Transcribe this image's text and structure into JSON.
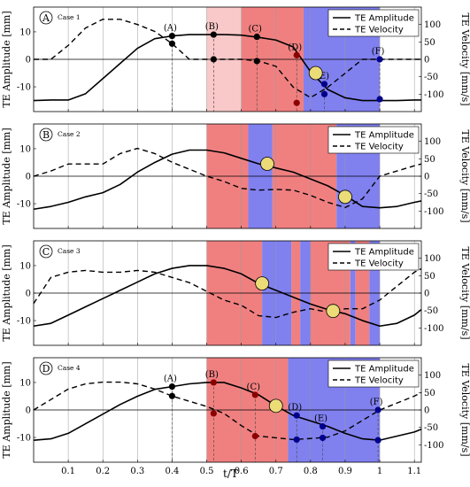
{
  "chart_data": {
    "type": "line",
    "xlabel": "t/T",
    "ylabel_left": "TE Amplitude [mm]",
    "ylabel_right": "TE Velocity [mm/s]",
    "xlim": [
      0,
      1.12
    ],
    "xticks": [
      "0.1",
      "0.2",
      "0.3",
      "0.4",
      "0.5",
      "0.6",
      "0.7",
      "0.8",
      "0.9",
      "1",
      "1.1"
    ],
    "xtick_values": [
      0.1,
      0.2,
      0.3,
      0.4,
      0.5,
      0.6,
      0.7,
      0.8,
      0.9,
      1.0,
      1.1
    ],
    "ylim_left": [
      -19,
      19
    ],
    "yticks_left": [
      "10",
      "0",
      "-10"
    ],
    "ylim_right": [
      -150,
      150
    ],
    "yticks_right": [
      "100",
      "50",
      "0",
      "-50",
      "-100"
    ],
    "grid": "vertical",
    "legend_location": "top-right",
    "legend": [
      "TE Amplitude",
      "TE Velocity"
    ],
    "colors": {
      "red": "#f08080",
      "light_red": "#f9c8c8",
      "blue": "#8080ef",
      "marker_red": "#8b0000",
      "marker_blue": "#00008b",
      "circle_fill": "#ecdc78"
    },
    "panels": [
      {
        "letter": "A",
        "case": "Case 1",
        "amplitude": {
          "x": [
            0,
            0.05,
            0.1,
            0.15,
            0.2,
            0.25,
            0.3,
            0.35,
            0.4,
            0.45,
            0.5,
            0.55,
            0.6,
            0.65,
            0.7,
            0.75,
            0.8,
            0.85,
            0.9,
            0.95,
            1.0,
            1.05,
            1.1,
            1.12
          ],
          "y": [
            -15,
            -14.8,
            -14.8,
            -12.5,
            -7,
            -1.5,
            4,
            7.5,
            8.5,
            9,
            9,
            9,
            8.8,
            8,
            7,
            4.5,
            -4.5,
            -11,
            -14,
            -15,
            -15,
            -15,
            -14.8,
            -14.8
          ]
        },
        "velocity": {
          "x": [
            0,
            0.05,
            0.1,
            0.15,
            0.2,
            0.25,
            0.3,
            0.35,
            0.4,
            0.45,
            0.5,
            0.55,
            0.6,
            0.65,
            0.7,
            0.75,
            0.8,
            0.85,
            0.9,
            0.95,
            1.0,
            1.05,
            1.1,
            1.12
          ],
          "y": [
            0,
            0,
            40,
            90,
            115,
            115,
            100,
            80,
            45,
            0,
            0,
            0,
            0,
            -5,
            -20,
            -80,
            -110,
            -80,
            -40,
            0,
            0,
            0,
            0,
            0
          ]
        },
        "regions": [
          {
            "x0": 0.5,
            "x1": 0.6,
            "color": "light_red"
          },
          {
            "x0": 0.6,
            "x1": 0.78,
            "color": "red"
          },
          {
            "x0": 0.78,
            "x1": 1.0,
            "color": "blue"
          }
        ],
        "markers": [
          {
            "label": "(A)",
            "x": 0.4,
            "amp": 8.5,
            "vel": 45,
            "color": "#000000"
          },
          {
            "label": "(B)",
            "x": 0.52,
            "amp": 9,
            "vel": 0,
            "color": "#000000"
          },
          {
            "label": "(C)",
            "x": 0.645,
            "amp": 8.2,
            "vel": -5,
            "color": "#000000"
          },
          {
            "label": "(D)",
            "x": 0.76,
            "amp": 1.5,
            "vel": -125,
            "color": "marker_red"
          },
          {
            "label": "(E)",
            "x": 0.84,
            "amp": -9,
            "vel": -100,
            "color": "marker_blue"
          },
          {
            "label": "(F)",
            "x": 1.0,
            "amp": -14.5,
            "vel": 0,
            "color": "marker_blue"
          }
        ],
        "circles": [
          {
            "x": 0.815,
            "amp": -5
          }
        ]
      },
      {
        "letter": "B",
        "case": "Case 2",
        "amplitude": {
          "x": [
            0,
            0.05,
            0.1,
            0.15,
            0.2,
            0.25,
            0.3,
            0.35,
            0.4,
            0.45,
            0.5,
            0.55,
            0.6,
            0.65,
            0.7,
            0.75,
            0.8,
            0.85,
            0.9,
            0.95,
            1.0,
            1.05,
            1.1,
            1.12
          ],
          "y": [
            -12,
            -11,
            -9.5,
            -7.5,
            -6,
            -3,
            1.5,
            5,
            8,
            9.5,
            9.5,
            8.5,
            6.5,
            4.5,
            3,
            1.5,
            -1,
            -3.5,
            -7,
            -11,
            -11.5,
            -11,
            -9.5,
            -9
          ]
        },
        "velocity": {
          "x": [
            0,
            0.05,
            0.1,
            0.15,
            0.2,
            0.25,
            0.3,
            0.35,
            0.4,
            0.45,
            0.5,
            0.55,
            0.6,
            0.65,
            0.7,
            0.75,
            0.8,
            0.85,
            0.9,
            0.95,
            1.0,
            1.05,
            1.1,
            1.12
          ],
          "y": [
            0,
            15,
            35,
            35,
            35,
            65,
            80,
            65,
            40,
            20,
            0,
            -15,
            -35,
            -40,
            -38,
            -40,
            -55,
            -75,
            -90,
            -65,
            0,
            15,
            30,
            35
          ]
        },
        "regions": [
          {
            "x0": 0.5,
            "x1": 0.62,
            "color": "red"
          },
          {
            "x0": 0.62,
            "x1": 0.69,
            "color": "blue"
          },
          {
            "x0": 0.69,
            "x1": 0.875,
            "color": "red"
          },
          {
            "x0": 0.875,
            "x1": 1.0,
            "color": "blue"
          }
        ],
        "markers": [],
        "circles": [
          {
            "x": 0.675,
            "amp": 4.5
          },
          {
            "x": 0.9,
            "amp": -7.5
          }
        ]
      },
      {
        "letter": "C",
        "case": "Case 3",
        "amplitude": {
          "x": [
            0,
            0.05,
            0.1,
            0.15,
            0.2,
            0.25,
            0.3,
            0.35,
            0.4,
            0.45,
            0.5,
            0.55,
            0.6,
            0.65,
            0.7,
            0.75,
            0.8,
            0.85,
            0.9,
            0.95,
            1.0,
            1.05,
            1.1,
            1.12
          ],
          "y": [
            -12,
            -11,
            -8,
            -5,
            -2,
            1,
            4,
            7,
            9,
            10,
            10,
            9,
            7,
            3.5,
            1,
            -1.5,
            -4,
            -6,
            -7.5,
            -10,
            -12,
            -11,
            -8,
            -6
          ]
        },
        "velocity": {
          "x": [
            0,
            0.05,
            0.1,
            0.15,
            0.2,
            0.25,
            0.3,
            0.35,
            0.4,
            0.45,
            0.5,
            0.55,
            0.6,
            0.65,
            0.7,
            0.75,
            0.8,
            0.85,
            0.9,
            0.95,
            1.0,
            1.05,
            1.1,
            1.12
          ],
          "y": [
            -30,
            45,
            60,
            65,
            60,
            60,
            65,
            60,
            45,
            30,
            5,
            -20,
            -35,
            -65,
            -70,
            -55,
            -45,
            -55,
            -45,
            -45,
            -20,
            20,
            60,
            70
          ]
        },
        "regions": [
          {
            "x0": 0.5,
            "x1": 0.66,
            "color": "red"
          },
          {
            "x0": 0.66,
            "x1": 0.745,
            "color": "blue"
          },
          {
            "x0": 0.745,
            "x1": 0.77,
            "color": "red"
          },
          {
            "x0": 0.77,
            "x1": 0.8,
            "color": "blue"
          },
          {
            "x0": 0.8,
            "x1": 0.915,
            "color": "red"
          },
          {
            "x0": 0.915,
            "x1": 0.93,
            "color": "blue"
          },
          {
            "x0": 0.93,
            "x1": 0.97,
            "color": "red"
          },
          {
            "x0": 0.97,
            "x1": 1.0,
            "color": "blue"
          }
        ],
        "markers": [],
        "circles": [
          {
            "x": 0.66,
            "amp": 3.5
          },
          {
            "x": 0.865,
            "amp": -6.5
          }
        ]
      },
      {
        "letter": "D",
        "case": "Case 4",
        "amplitude": {
          "x": [
            0,
            0.05,
            0.1,
            0.15,
            0.2,
            0.25,
            0.3,
            0.35,
            0.4,
            0.45,
            0.5,
            0.55,
            0.6,
            0.65,
            0.7,
            0.75,
            0.8,
            0.85,
            0.9,
            0.95,
            1.0,
            1.05,
            1.1,
            1.12
          ],
          "y": [
            -11,
            -10.5,
            -8.5,
            -5,
            -1.5,
            2,
            5,
            7.5,
            8.5,
            9.5,
            10,
            10,
            8,
            5.5,
            1.5,
            -2,
            -4,
            -6,
            -8.5,
            -10.5,
            -11,
            -9.5,
            -8,
            -7
          ]
        },
        "velocity": {
          "x": [
            0,
            0.05,
            0.1,
            0.15,
            0.2,
            0.25,
            0.3,
            0.35,
            0.4,
            0.45,
            0.5,
            0.55,
            0.6,
            0.65,
            0.7,
            0.75,
            0.8,
            0.85,
            0.9,
            0.95,
            1.0,
            1.05,
            1.1,
            1.12
          ],
          "y": [
            0,
            30,
            60,
            75,
            80,
            80,
            75,
            60,
            40,
            25,
            10,
            -10,
            -45,
            -75,
            -80,
            -85,
            -82,
            -78,
            -60,
            -30,
            0,
            20,
            40,
            50
          ]
        },
        "regions": [
          {
            "x0": 0.5,
            "x1": 0.735,
            "color": "red"
          },
          {
            "x0": 0.735,
            "x1": 1.0,
            "color": "blue"
          }
        ],
        "markers": [
          {
            "label": "(A)",
            "x": 0.4,
            "amp": 8.5,
            "vel": 40,
            "color": "#000000"
          },
          {
            "label": "(B)",
            "x": 0.52,
            "amp": 10,
            "vel": -10,
            "color": "marker_red"
          },
          {
            "label": "(C)",
            "x": 0.64,
            "amp": 5.5,
            "vel": -75,
            "color": "marker_red"
          },
          {
            "label": "(D)",
            "x": 0.76,
            "amp": -2,
            "vel": -85,
            "color": "marker_blue"
          },
          {
            "label": "(E)",
            "x": 0.835,
            "amp": -6,
            "vel": -80,
            "color": "marker_blue"
          },
          {
            "label": "(F)",
            "x": 0.995,
            "amp": -11,
            "vel": 0,
            "color": "marker_blue"
          }
        ],
        "circles": [
          {
            "x": 0.7,
            "amp": 1.5
          }
        ]
      }
    ]
  }
}
